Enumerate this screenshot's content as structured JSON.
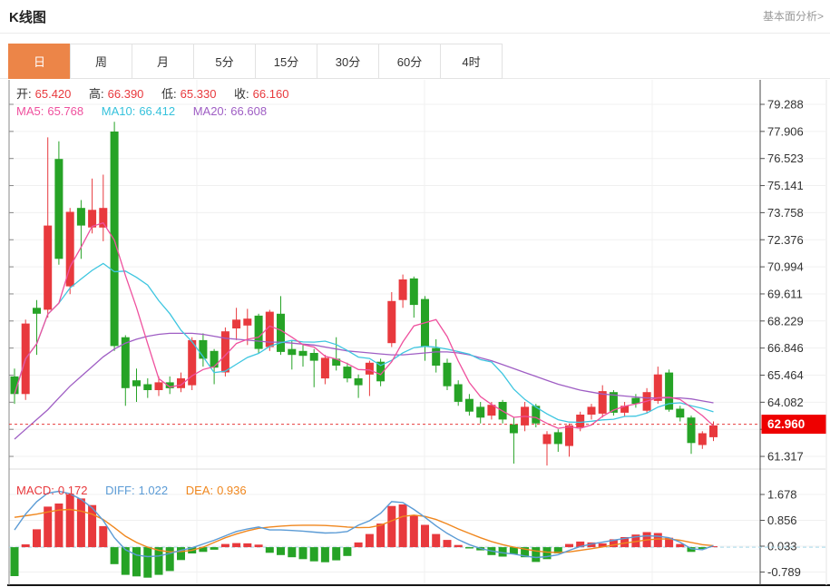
{
  "header": {
    "title": "K线图",
    "analysis_link": "基本面分析>"
  },
  "tabs": {
    "items": [
      "日",
      "周",
      "月",
      "5分",
      "15分",
      "30分",
      "60分",
      "4时"
    ],
    "active_index": 0
  },
  "legend_ohlc": {
    "open_label": "开:",
    "open": "65.420",
    "high_label": "高:",
    "high": "66.390",
    "low_label": "低:",
    "low": "65.330",
    "close_label": "收:",
    "close": "66.160"
  },
  "legend_ma": [
    {
      "label": "MA5:",
      "value": "65.768"
    },
    {
      "label": "MA10:",
      "value": "66.412"
    },
    {
      "label": "MA20:",
      "value": "66.608"
    }
  ],
  "legend_macd": [
    {
      "label": "MACD:",
      "value": "0.172"
    },
    {
      "label": "DIFF:",
      "value": "1.022"
    },
    {
      "label": "DEA:",
      "value": "0.936"
    }
  ],
  "colors": {
    "up": "#e8393d",
    "down": "#26a326",
    "ma5": "#ef519e",
    "ma10": "#3ec6e0",
    "ma20": "#9f5ec4",
    "diff_line": "#5b9bd5",
    "dea_line": "#f0871e",
    "tab_active_bg": "#ec8548",
    "badge_bg": "#ee0000",
    "dotted_price_line": "#e83b3b",
    "axis_text": "#333333",
    "grid": "#f0f0f0"
  },
  "chart_data": {
    "type": "candlestick",
    "title": "K线图",
    "legend_position": "top-left inside plot",
    "grid": "on",
    "price_axis_range": [
      60.6,
      80.5
    ],
    "price_y_ticks": [
      "79.288",
      "77.906",
      "76.523",
      "75.141",
      "73.758",
      "72.376",
      "70.994",
      "69.611",
      "68.229",
      "66.846",
      "65.464",
      "64.082",
      "",
      "61.317"
    ],
    "last_price": "62.960",
    "candles_ohlc": [
      [
        65.4,
        65.8,
        64.0,
        64.5
      ],
      [
        64.5,
        68.3,
        64.2,
        68.1
      ],
      [
        68.9,
        69.3,
        66.5,
        68.6
      ],
      [
        68.8,
        77.6,
        68.4,
        73.1
      ],
      [
        76.5,
        77.4,
        71.1,
        71.4
      ],
      [
        70.0,
        74.0,
        69.6,
        73.8
      ],
      [
        74.0,
        74.4,
        71.4,
        73.1
      ],
      [
        73.0,
        75.5,
        72.7,
        73.9
      ],
      [
        73.0,
        75.7,
        72.3,
        74.0
      ],
      [
        77.9,
        78.4,
        66.7,
        66.95
      ],
      [
        67.4,
        67.5,
        63.9,
        64.8
      ],
      [
        65.2,
        65.8,
        64.1,
        64.9
      ],
      [
        65.0,
        65.3,
        64.3,
        64.7
      ],
      [
        64.7,
        65.4,
        64.4,
        65.1
      ],
      [
        65.1,
        65.4,
        64.5,
        64.8
      ],
      [
        64.8,
        65.6,
        64.6,
        65.3
      ],
      [
        64.95,
        67.4,
        64.7,
        67.25
      ],
      [
        67.25,
        67.6,
        65.9,
        66.3
      ],
      [
        66.7,
        66.8,
        65.0,
        65.85
      ],
      [
        65.6,
        67.9,
        65.4,
        67.7
      ],
      [
        67.85,
        68.9,
        67.25,
        68.3
      ],
      [
        68.0,
        68.85,
        67.0,
        68.35
      ],
      [
        68.5,
        68.6,
        66.6,
        66.8
      ],
      [
        66.9,
        68.8,
        66.7,
        68.7
      ],
      [
        68.6,
        69.5,
        66.5,
        66.65
      ],
      [
        66.8,
        67.25,
        65.75,
        66.5
      ],
      [
        66.7,
        67.0,
        65.9,
        66.45
      ],
      [
        66.6,
        66.8,
        64.85,
        66.2
      ],
      [
        65.3,
        66.5,
        65.0,
        66.35
      ],
      [
        66.3,
        67.4,
        65.7,
        65.95
      ],
      [
        65.9,
        66.1,
        65.1,
        65.3
      ],
      [
        65.3,
        65.5,
        64.3,
        64.95
      ],
      [
        65.5,
        66.2,
        64.4,
        66.1
      ],
      [
        66.15,
        66.3,
        64.9,
        65.15
      ],
      [
        67.1,
        69.7,
        66.9,
        69.25
      ],
      [
        69.3,
        70.6,
        68.9,
        70.35
      ],
      [
        70.4,
        70.5,
        68.4,
        69.05
      ],
      [
        69.35,
        69.5,
        66.2,
        66.9
      ],
      [
        66.85,
        67.3,
        65.6,
        65.95
      ],
      [
        66.1,
        66.3,
        64.7,
        64.9
      ],
      [
        65.0,
        65.2,
        63.9,
        64.1
      ],
      [
        64.25,
        64.5,
        63.4,
        63.6
      ],
      [
        63.85,
        64.1,
        63.0,
        63.3
      ],
      [
        63.4,
        64.1,
        63.2,
        63.95
      ],
      [
        64.1,
        64.2,
        63.0,
        63.2
      ],
      [
        62.95,
        63.3,
        60.95,
        62.5
      ],
      [
        62.9,
        64.1,
        62.6,
        63.85
      ],
      [
        63.9,
        64.0,
        62.8,
        63.0
      ],
      [
        61.95,
        62.6,
        60.85,
        62.45
      ],
      [
        62.55,
        62.7,
        61.55,
        61.95
      ],
      [
        61.85,
        63.0,
        61.3,
        62.9
      ],
      [
        62.8,
        63.6,
        62.6,
        63.45
      ],
      [
        63.45,
        64.0,
        63.2,
        63.85
      ],
      [
        63.5,
        64.95,
        63.3,
        64.65
      ],
      [
        64.6,
        64.7,
        63.4,
        63.55
      ],
      [
        63.55,
        64.1,
        63.35,
        63.9
      ],
      [
        64.3,
        64.5,
        63.8,
        64.0
      ],
      [
        63.65,
        64.8,
        63.5,
        64.6
      ],
      [
        64.15,
        65.9,
        64.0,
        65.5
      ],
      [
        65.6,
        65.75,
        63.6,
        63.7
      ],
      [
        63.75,
        63.9,
        63.1,
        63.3
      ],
      [
        63.3,
        63.4,
        61.45,
        62.0
      ],
      [
        61.9,
        62.6,
        61.7,
        62.5
      ],
      [
        62.3,
        63.1,
        62.1,
        62.9
      ]
    ],
    "ma20": [
      62.2,
      62.7,
      63.2,
      63.7,
      64.3,
      64.9,
      65.4,
      65.9,
      66.4,
      66.8,
      67.1,
      67.3,
      67.45,
      67.55,
      67.6,
      67.6,
      67.6,
      67.55,
      67.45,
      67.35,
      67.3,
      67.25,
      67.2,
      67.15,
      67.15,
      67.1,
      67.05,
      67.0,
      66.9,
      66.8,
      66.7,
      66.65,
      66.6,
      66.55,
      66.5,
      66.5,
      66.55,
      66.6,
      66.65,
      66.65,
      66.6,
      66.5,
      66.35,
      66.2,
      66.0,
      65.8,
      65.6,
      65.4,
      65.2,
      65.0,
      64.85,
      64.7,
      64.6,
      64.5,
      64.45,
      64.4,
      64.35,
      64.3,
      64.3,
      64.3,
      64.3,
      64.25,
      64.15,
      64.05
    ],
    "macd": {
      "y_ticks": [
        "1.678",
        "0.856",
        "0.033",
        "-0.789"
      ],
      "hist": [
        -0.92,
        0.09,
        0.57,
        1.29,
        1.39,
        1.68,
        1.55,
        1.34,
        0.67,
        -0.54,
        -0.88,
        -0.93,
        -0.97,
        -0.88,
        -0.76,
        -0.41,
        -0.2,
        -0.15,
        -0.08,
        0.1,
        0.13,
        0.12,
        0.08,
        -0.18,
        -0.25,
        -0.32,
        -0.38,
        -0.45,
        -0.48,
        -0.42,
        -0.28,
        0.15,
        0.42,
        0.75,
        1.31,
        1.36,
        1.0,
        0.71,
        0.42,
        0.23,
        0.07,
        -0.04,
        -0.1,
        -0.25,
        -0.3,
        -0.22,
        -0.32,
        -0.47,
        -0.38,
        -0.2,
        0.1,
        0.18,
        0.15,
        0.12,
        0.25,
        0.32,
        0.4,
        0.48,
        0.45,
        0.3,
        0.1,
        -0.15,
        -0.06,
        0.03
      ],
      "diff": [
        0.55,
        1.05,
        1.45,
        1.72,
        1.78,
        1.7,
        1.52,
        1.25,
        0.85,
        0.3,
        -0.08,
        -0.25,
        -0.3,
        -0.28,
        -0.2,
        -0.1,
        -0.02,
        0.1,
        0.22,
        0.36,
        0.5,
        0.58,
        0.64,
        0.55,
        0.55,
        0.53,
        0.51,
        0.48,
        0.45,
        0.46,
        0.5,
        0.7,
        0.84,
        1.08,
        1.45,
        1.42,
        1.2,
        0.95,
        0.68,
        0.44,
        0.24,
        0.08,
        -0.04,
        -0.12,
        -0.18,
        -0.22,
        -0.28,
        -0.33,
        -0.3,
        -0.24,
        -0.1,
        0.02,
        0.1,
        0.16,
        0.22,
        0.28,
        0.33,
        0.36,
        0.35,
        0.3,
        0.16,
        -0.05,
        -0.08,
        0.05
      ],
      "dea": [
        0.95,
        1.0,
        1.05,
        1.12,
        1.18,
        1.2,
        1.15,
        1.05,
        0.88,
        0.62,
        0.35,
        0.15,
        0.0,
        -0.1,
        -0.15,
        -0.14,
        -0.1,
        0.0,
        0.15,
        0.3,
        0.42,
        0.52,
        0.6,
        0.64,
        0.67,
        0.69,
        0.7,
        0.7,
        0.69,
        0.67,
        0.64,
        0.62,
        0.63,
        0.7,
        0.84,
        0.98,
        1.02,
        0.98,
        0.88,
        0.74,
        0.58,
        0.44,
        0.3,
        0.18,
        0.08,
        0.0,
        -0.06,
        -0.12,
        -0.16,
        -0.17,
        -0.15,
        -0.1,
        -0.05,
        0.01,
        0.07,
        0.13,
        0.18,
        0.23,
        0.26,
        0.26,
        0.22,
        0.15,
        0.08,
        0.05
      ]
    }
  }
}
